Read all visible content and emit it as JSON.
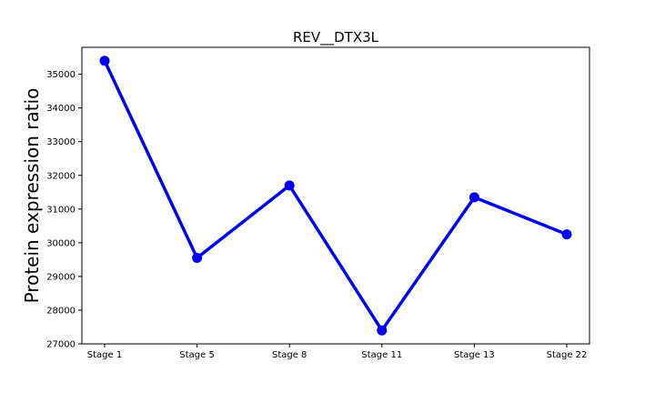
{
  "chart_data": {
    "type": "line",
    "title": "REV__DTX3L",
    "xlabel": "",
    "ylabel": "Protein expression ratio",
    "categories": [
      "Stage 1",
      "Stage 5",
      "Stage 8",
      "Stage 11",
      "Stage 13",
      "Stage 22"
    ],
    "series": [
      {
        "values": [
          35400,
          29550,
          31700,
          27400,
          31350,
          30250
        ],
        "color": "#0000ee"
      }
    ],
    "yticks": [
      27000,
      28000,
      29000,
      30000,
      31000,
      32000,
      33000,
      34000,
      35000
    ],
    "ylim": [
      27000,
      35800
    ],
    "grid": false,
    "legend": "none"
  }
}
